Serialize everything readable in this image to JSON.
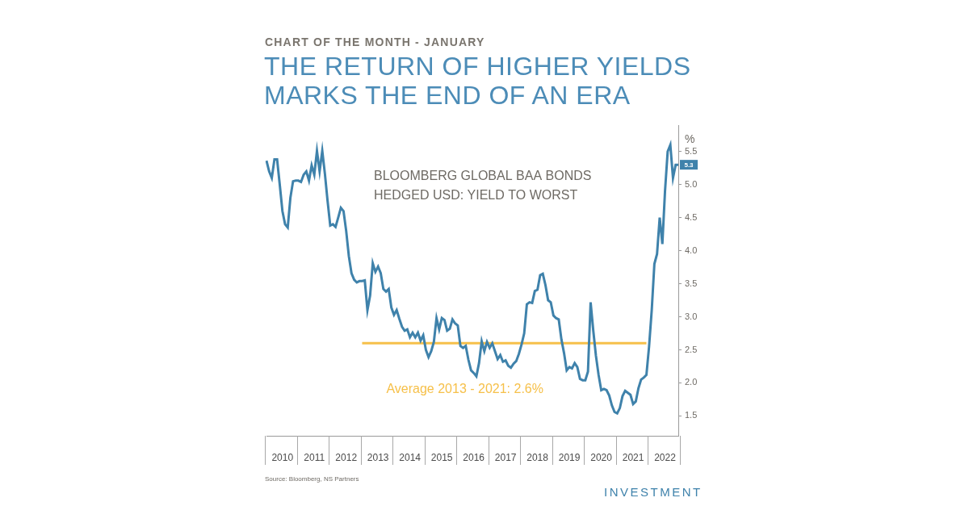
{
  "chart_data": {
    "type": "line",
    "subtitle": "CHART OF THE MONTH - JANUARY",
    "title": "THE RETURN OF HIGHER YIELDS MARKS THE END OF AN ERA",
    "y_label": "%",
    "categories": [
      null,
      null,
      null,
      null,
      null,
      null,
      "2010",
      null,
      null,
      null,
      null,
      null,
      null,
      null,
      null,
      null,
      null,
      null,
      "2011",
      null,
      null,
      null,
      null,
      null,
      null,
      null,
      null,
      null,
      null,
      null,
      "2012",
      null,
      null,
      null,
      null,
      null,
      null,
      null,
      null,
      null,
      null,
      null,
      "2013",
      null,
      null,
      null,
      null,
      null,
      null,
      null,
      null,
      null,
      null,
      null,
      "2014",
      null,
      null,
      null,
      null,
      null,
      null,
      null,
      null,
      null,
      null,
      null,
      "2015",
      null,
      null,
      null,
      null,
      null,
      null,
      null,
      null,
      null,
      null,
      null,
      "2016",
      null,
      null,
      null,
      null,
      null,
      null,
      null,
      null,
      null,
      null,
      null,
      "2017",
      null,
      null,
      null,
      null,
      null,
      null,
      null,
      null,
      null,
      null,
      null,
      "2018",
      null,
      null,
      null,
      null,
      null,
      null,
      null,
      null,
      null,
      null,
      null,
      "2019",
      null,
      null,
      null,
      null,
      null,
      null,
      null,
      null,
      null,
      null,
      null,
      "2020",
      null,
      null,
      null,
      null,
      null,
      null,
      null,
      null,
      null,
      null,
      null,
      "2021",
      null,
      null,
      null,
      null,
      null,
      null,
      null,
      null,
      null,
      null,
      null,
      "2022",
      null,
      null,
      null,
      null,
      null
    ],
    "series": [
      {
        "name": "BLOOMBERG GLOBAL BAA BONDS HEDGED USD: YIELD TO WORST",
        "color": "#3f82ab",
        "values": [
          5.36,
          5.2,
          5.1,
          5.38,
          5.38,
          5.0,
          4.6,
          4.4,
          4.35,
          4.8,
          5.05,
          5.06,
          5.06,
          5.04,
          5.15,
          5.2,
          5.06,
          5.29,
          5.15,
          5.51,
          5.2,
          5.51,
          5.16,
          4.75,
          4.38,
          4.4,
          4.36,
          4.5,
          4.65,
          4.6,
          4.3,
          3.92,
          3.66,
          3.56,
          3.52,
          3.54,
          3.54,
          3.55,
          3.1,
          3.32,
          3.81,
          3.68,
          3.76,
          3.66,
          3.42,
          3.38,
          3.42,
          3.14,
          3.03,
          3.1,
          2.97,
          2.85,
          2.79,
          2.81,
          2.69,
          2.76,
          2.69,
          2.76,
          2.64,
          2.72,
          2.5,
          2.39,
          2.48,
          2.62,
          2.98,
          2.81,
          2.98,
          2.95,
          2.79,
          2.82,
          2.96,
          2.9,
          2.87,
          2.56,
          2.53,
          2.56,
          2.35,
          2.19,
          2.15,
          2.1,
          2.3,
          2.63,
          2.48,
          2.62,
          2.53,
          2.6,
          2.48,
          2.36,
          2.42,
          2.32,
          2.34,
          2.26,
          2.23,
          2.29,
          2.33,
          2.44,
          2.58,
          2.75,
          3.19,
          3.22,
          3.21,
          3.39,
          3.41,
          3.63,
          3.65,
          3.48,
          3.25,
          3.22,
          3.02,
          2.98,
          2.96,
          2.66,
          2.45,
          2.19,
          2.24,
          2.22,
          2.3,
          2.24,
          2.06,
          2.04,
          2.04,
          2.17,
          3.22,
          2.79,
          2.41,
          2.12,
          1.89,
          1.91,
          1.89,
          1.81,
          1.66,
          1.56,
          1.54,
          1.62,
          1.8,
          1.88,
          1.85,
          1.82,
          1.68,
          1.72,
          1.92,
          2.05,
          2.08,
          2.12,
          2.55,
          3.1,
          3.8,
          3.95,
          4.5,
          4.1,
          4.9,
          5.5,
          5.6,
          5.1,
          5.3,
          5.3
        ]
      }
    ],
    "reference_line": {
      "value": 2.6,
      "label": "Average 2013 - 2021: 2.6%",
      "color": "#f6c04a",
      "from": "2013",
      "to": "2021"
    },
    "annotations": [
      {
        "text": "5.3",
        "y": 5.3
      }
    ],
    "ylim": [
      1.2,
      5.9
    ],
    "yticks": [
      1.5,
      {
        "value": 2,
        "label": "2.0"
      },
      2.5,
      {
        "value": 3,
        "label": "3.0"
      },
      3.5,
      {
        "value": 4,
        "label": "4.0"
      },
      4.5,
      {
        "value": 5,
        "label": "5.0"
      },
      5.5
    ],
    "grid": false,
    "source": "Source: Bloomberg, NS Partners",
    "footer": "INVESTMENT"
  }
}
